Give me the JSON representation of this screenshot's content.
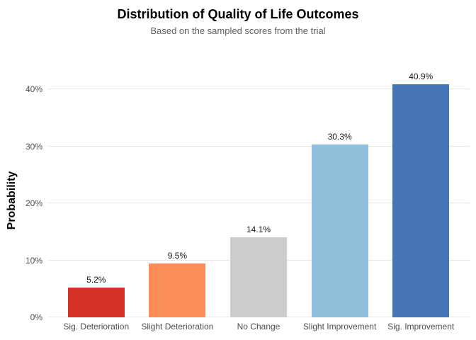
{
  "chart_data": {
    "type": "bar",
    "title": "Distribution of Quality of Life Outcomes",
    "subtitle": "Based on the sampled scores from the trial",
    "xlabel": "",
    "ylabel": "Probability",
    "categories": [
      "Sig. Deterioration",
      "Slight Deterioration",
      "No Change",
      "Slight Improvement",
      "Sig. Improvement"
    ],
    "values": [
      5.2,
      9.5,
      14.1,
      30.3,
      40.9
    ],
    "value_labels": [
      "5.2%",
      "9.5%",
      "14.1%",
      "30.3%",
      "40.9%"
    ],
    "bar_colors": [
      "#d73027",
      "#fc8d59",
      "#cccccc",
      "#91bfdb",
      "#4575b4"
    ],
    "ylim": [
      0,
      43
    ],
    "yticks": [
      0,
      10,
      20,
      30,
      40
    ],
    "ytick_labels": [
      "0%",
      "10%",
      "20%",
      "30%",
      "40%"
    ],
    "grid": "horizontal-major-only",
    "gridline_color": "#e7e7e7",
    "axis_text_color": "#4d4d4d",
    "value_label_color": "#1a1a1a",
    "background": "#ffffff",
    "legend": "none"
  }
}
